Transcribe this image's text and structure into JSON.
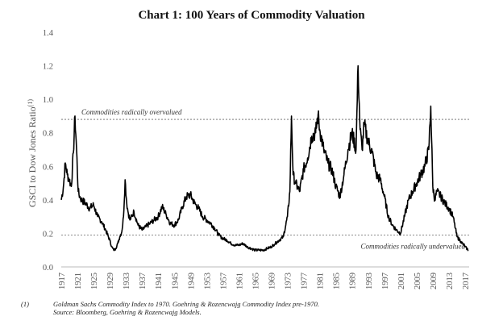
{
  "chart_data": {
    "type": "line",
    "title": "Chart 1: 100 Years of Commodity Valuation",
    "ylabel": "GSCI to Dow Jones Ratio",
    "ylabel_note": "(1)",
    "ylim": [
      0.0,
      1.4
    ],
    "yticks": [
      "0.0",
      "0.2",
      "0.4",
      "0.6",
      "0.8",
      "1.0",
      "1.2",
      "1.4"
    ],
    "xlim": [
      1917,
      2018
    ],
    "xticks": [
      "1917",
      "1921",
      "1925",
      "1929",
      "1933",
      "1937",
      "1941",
      "1945",
      "1949",
      "1953",
      "1957",
      "1961",
      "1965",
      "1969",
      "1973",
      "1977",
      "1981",
      "1985",
      "1989",
      "1993",
      "1997",
      "2001",
      "2005",
      "2009",
      "2013",
      "2017"
    ],
    "grid": false,
    "reference_lines": [
      {
        "y": 0.88,
        "label": "Commodities radically overvalued",
        "style": "dashed"
      },
      {
        "y": 0.19,
        "label": "Commodities radically undervalued",
        "style": "dashed"
      }
    ],
    "series": [
      {
        "name": "",
        "x": [
          1917,
          1917.5,
          1918,
          1918.5,
          1919,
          1919.5,
          1920,
          1920.4,
          1920.8,
          1921.2,
          1921.6,
          1922,
          1923,
          1924,
          1925,
          1926,
          1927,
          1928,
          1929,
          1929.5,
          1930,
          1930.5,
          1931,
          1931.5,
          1932,
          1932.4,
          1932.8,
          1933.2,
          1933.6,
          1934,
          1935,
          1936,
          1937,
          1938,
          1939,
          1940,
          1941,
          1942,
          1943,
          1944,
          1945,
          1946,
          1947,
          1948,
          1949,
          1950,
          1951,
          1952,
          1953,
          1954,
          1955,
          1956,
          1957,
          1958,
          1959,
          1960,
          1961,
          1962,
          1963,
          1964,
          1965,
          1966,
          1967,
          1968,
          1969,
          1970,
          1971,
          1972,
          1973,
          1973.6,
          1974,
          1974.4,
          1975,
          1976,
          1977,
          1978,
          1979,
          1980,
          1980.6,
          1981,
          1982,
          1983,
          1984,
          1985,
          1986,
          1987,
          1988,
          1989,
          1990,
          1990.5,
          1991,
          1991.5,
          1992,
          1993,
          1994,
          1995,
          1996,
          1997,
          1998,
          1999,
          2000,
          2001,
          2002,
          2003,
          2004,
          2005,
          2006,
          2007,
          2008,
          2008.5,
          2009,
          2009.5,
          2010,
          2011,
          2012,
          2013,
          2014,
          2015,
          2016,
          2017,
          2017.8
        ],
        "values": [
          0.4,
          0.47,
          0.62,
          0.55,
          0.52,
          0.48,
          0.68,
          0.9,
          0.7,
          0.45,
          0.42,
          0.4,
          0.38,
          0.35,
          0.37,
          0.3,
          0.27,
          0.22,
          0.16,
          0.12,
          0.1,
          0.11,
          0.14,
          0.18,
          0.21,
          0.3,
          0.52,
          0.38,
          0.32,
          0.28,
          0.33,
          0.25,
          0.22,
          0.24,
          0.26,
          0.28,
          0.3,
          0.36,
          0.31,
          0.26,
          0.25,
          0.28,
          0.36,
          0.42,
          0.43,
          0.38,
          0.35,
          0.3,
          0.28,
          0.26,
          0.23,
          0.19,
          0.17,
          0.16,
          0.14,
          0.13,
          0.13,
          0.14,
          0.12,
          0.11,
          0.1,
          0.1,
          0.1,
          0.11,
          0.12,
          0.14,
          0.16,
          0.18,
          0.3,
          0.45,
          0.9,
          0.55,
          0.5,
          0.45,
          0.58,
          0.65,
          0.78,
          0.8,
          0.91,
          0.82,
          0.7,
          0.62,
          0.58,
          0.48,
          0.42,
          0.55,
          0.7,
          0.8,
          0.7,
          1.2,
          0.82,
          0.7,
          0.85,
          0.75,
          0.68,
          0.55,
          0.52,
          0.42,
          0.3,
          0.25,
          0.22,
          0.2,
          0.3,
          0.4,
          0.45,
          0.5,
          0.55,
          0.6,
          0.7,
          0.96,
          0.48,
          0.4,
          0.45,
          0.42,
          0.38,
          0.35,
          0.3,
          0.18,
          0.15,
          0.12,
          0.1
        ]
      }
    ]
  },
  "footnote": {
    "number": "(1)",
    "line1": "Goldman Sachs Commodity Index to 1970.  Goehring & Rozencwajg Commodity Index pre-1970.",
    "line2": "Source: Bloomberg, Goehring & Rozencwajg Models."
  }
}
